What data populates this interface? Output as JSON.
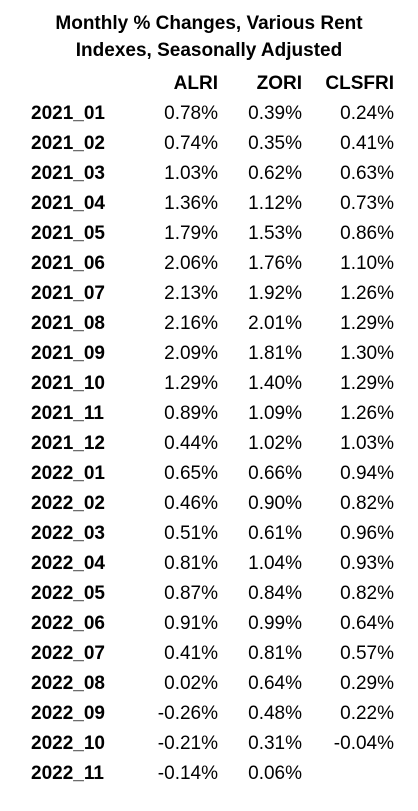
{
  "title_lines": [
    "Monthly % Changes, Various Rent",
    "Indexes, Seasonally Adjusted"
  ],
  "chart_data": {
    "type": "table",
    "title": "Monthly % Changes, Various Rent Indexes, Seasonally Adjusted",
    "columns": [
      "",
      "ALRI",
      "ZORI",
      "CLSFRI"
    ],
    "rows": [
      {
        "date": "2021_01",
        "ALRI": "0.78%",
        "ZORI": "0.39%",
        "CLSFRI": "0.24%"
      },
      {
        "date": "2021_02",
        "ALRI": "0.74%",
        "ZORI": "0.35%",
        "CLSFRI": "0.41%"
      },
      {
        "date": "2021_03",
        "ALRI": "1.03%",
        "ZORI": "0.62%",
        "CLSFRI": "0.63%"
      },
      {
        "date": "2021_04",
        "ALRI": "1.36%",
        "ZORI": "1.12%",
        "CLSFRI": "0.73%"
      },
      {
        "date": "2021_05",
        "ALRI": "1.79%",
        "ZORI": "1.53%",
        "CLSFRI": "0.86%"
      },
      {
        "date": "2021_06",
        "ALRI": "2.06%",
        "ZORI": "1.76%",
        "CLSFRI": "1.10%"
      },
      {
        "date": "2021_07",
        "ALRI": "2.13%",
        "ZORI": "1.92%",
        "CLSFRI": "1.26%"
      },
      {
        "date": "2021_08",
        "ALRI": "2.16%",
        "ZORI": "2.01%",
        "CLSFRI": "1.29%"
      },
      {
        "date": "2021_09",
        "ALRI": "2.09%",
        "ZORI": "1.81%",
        "CLSFRI": "1.30%"
      },
      {
        "date": "2021_10",
        "ALRI": "1.29%",
        "ZORI": "1.40%",
        "CLSFRI": "1.29%"
      },
      {
        "date": "2021_11",
        "ALRI": "0.89%",
        "ZORI": "1.09%",
        "CLSFRI": "1.26%"
      },
      {
        "date": "2021_12",
        "ALRI": "0.44%",
        "ZORI": "1.02%",
        "CLSFRI": "1.03%"
      },
      {
        "date": "2022_01",
        "ALRI": "0.65%",
        "ZORI": "0.66%",
        "CLSFRI": "0.94%"
      },
      {
        "date": "2022_02",
        "ALRI": "0.46%",
        "ZORI": "0.90%",
        "CLSFRI": "0.82%"
      },
      {
        "date": "2022_03",
        "ALRI": "0.51%",
        "ZORI": "0.61%",
        "CLSFRI": "0.96%"
      },
      {
        "date": "2022_04",
        "ALRI": "0.81%",
        "ZORI": "1.04%",
        "CLSFRI": "0.93%"
      },
      {
        "date": "2022_05",
        "ALRI": "0.87%",
        "ZORI": "0.84%",
        "CLSFRI": "0.82%"
      },
      {
        "date": "2022_06",
        "ALRI": "0.91%",
        "ZORI": "0.99%",
        "CLSFRI": "0.64%"
      },
      {
        "date": "2022_07",
        "ALRI": "0.41%",
        "ZORI": "0.81%",
        "CLSFRI": "0.57%"
      },
      {
        "date": "2022_08",
        "ALRI": "0.02%",
        "ZORI": "0.64%",
        "CLSFRI": "0.29%"
      },
      {
        "date": "2022_09",
        "ALRI": "-0.26%",
        "ZORI": "0.48%",
        "CLSFRI": "0.22%"
      },
      {
        "date": "2022_10",
        "ALRI": "-0.21%",
        "ZORI": "0.31%",
        "CLSFRI": "-0.04%"
      },
      {
        "date": "2022_11",
        "ALRI": "-0.14%",
        "ZORI": "0.06%",
        "CLSFRI": ""
      }
    ]
  }
}
